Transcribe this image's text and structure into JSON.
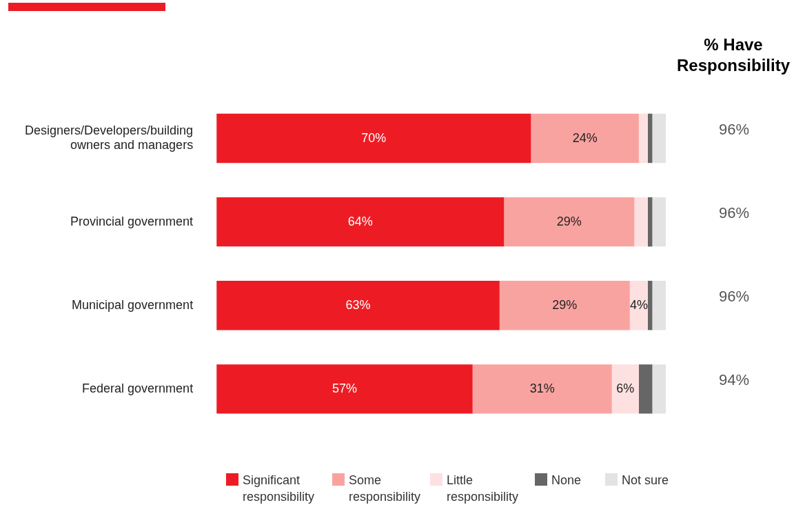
{
  "chart_data": {
    "type": "bar",
    "orientation": "horizontal",
    "stacked": true,
    "categories": [
      "Designers/Developers/building owners and managers",
      "Provincial government",
      "Municipal government",
      "Federal government"
    ],
    "series": [
      {
        "name": "Significant responsibility",
        "color": "#ed1c24",
        "values": [
          70,
          64,
          63,
          57
        ],
        "value_labels": [
          "70%",
          "64%",
          "63%",
          "57%"
        ]
      },
      {
        "name": "Some responsibility",
        "color": "#f9a3a1",
        "values": [
          24,
          29,
          29,
          31
        ],
        "value_labels": [
          "24%",
          "29%",
          "29%",
          "31%"
        ]
      },
      {
        "name": "Little responsibility",
        "color": "#fde0e0",
        "values": [
          2,
          3,
          4,
          6
        ],
        "value_labels": [
          null,
          null,
          "4%",
          "6%"
        ]
      },
      {
        "name": "None",
        "color": "#666666",
        "values": [
          1,
          1,
          1,
          3
        ],
        "value_labels": [
          null,
          null,
          null,
          null
        ]
      },
      {
        "name": "Not sure",
        "color": "#e3e3e3",
        "values": [
          3,
          3,
          3,
          3
        ],
        "value_labels": [
          null,
          null,
          null,
          null
        ]
      }
    ],
    "xlim": [
      0,
      100
    ],
    "tick_labels": "y",
    "grid": false,
    "legend": "bottom",
    "annotations": [
      "% Have Responsibility",
      "96%",
      "96%",
      "96%",
      "94%"
    ]
  }
}
